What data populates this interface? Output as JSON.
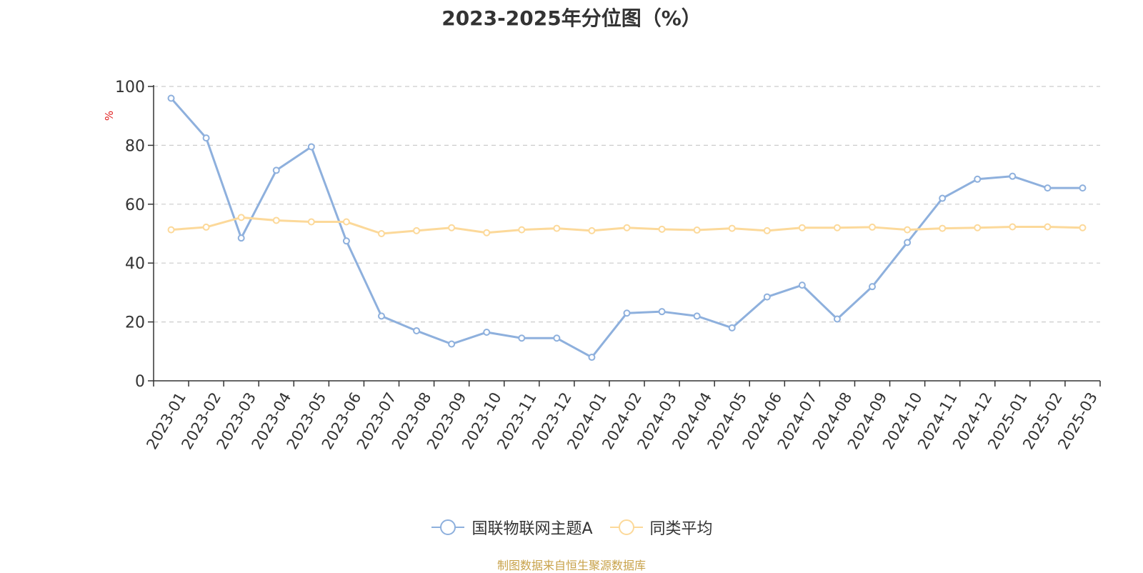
{
  "chart_data": {
    "type": "line",
    "title": "2023-2025年分位图（%）",
    "ylabel": "%",
    "xlabel": "",
    "ylim": [
      0,
      100
    ],
    "yticks": [
      0,
      20,
      40,
      60,
      80,
      100
    ],
    "grid": true,
    "legend_position": "bottom",
    "categories": [
      "2023-01",
      "2023-02",
      "2023-03",
      "2023-04",
      "2023-05",
      "2023-06",
      "2023-07",
      "2023-08",
      "2023-09",
      "2023-10",
      "2023-11",
      "2023-12",
      "2024-01",
      "2024-02",
      "2024-03",
      "2024-04",
      "2024-05",
      "2024-06",
      "2024-07",
      "2024-08",
      "2024-09",
      "2024-10",
      "2024-11",
      "2024-12",
      "2025-01",
      "2025-02",
      "2025-03"
    ],
    "series": [
      {
        "name": "国联物联网主题A",
        "color": "#8eb0dd",
        "values": [
          96,
          82.5,
          48.5,
          71.5,
          79.5,
          47.5,
          22,
          17,
          12.5,
          16.5,
          14.5,
          14.5,
          8,
          23,
          23.5,
          22,
          18,
          28.5,
          32.5,
          21,
          32,
          47,
          62,
          68.5,
          69.5,
          65.5,
          65.5
        ]
      },
      {
        "name": "同类平均",
        "color": "#fcd99a",
        "values": [
          51.3,
          52.2,
          55.5,
          54.5,
          54,
          54,
          50,
          51,
          52,
          50.3,
          51.3,
          51.8,
          51,
          52,
          51.5,
          51.2,
          51.8,
          51,
          52,
          52,
          52.2,
          51.3,
          51.8,
          52,
          52.3,
          52.3,
          52
        ]
      }
    ]
  },
  "source_note": "制图数据来自恒生聚源数据库"
}
